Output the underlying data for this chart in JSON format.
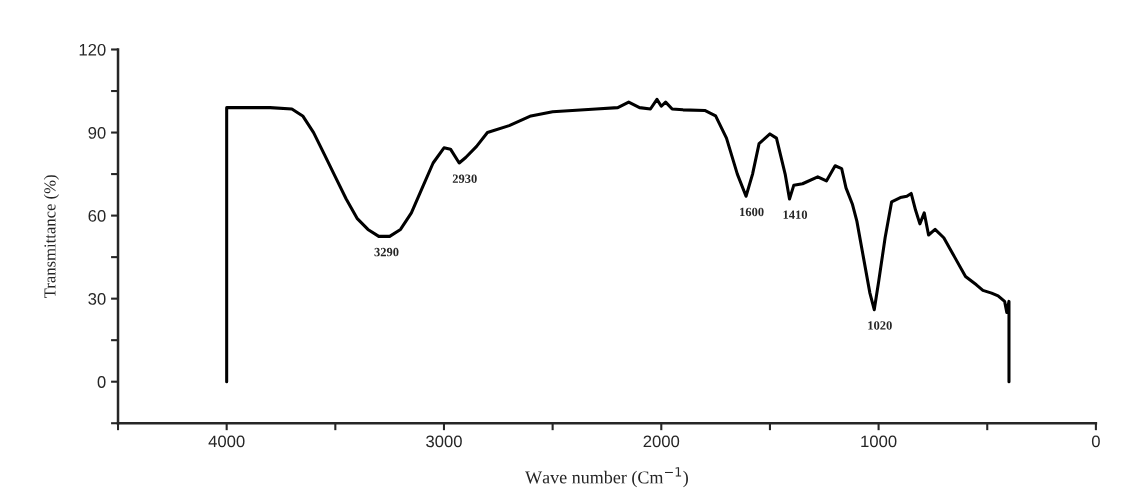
{
  "chart_data": {
    "type": "line",
    "xlabel": "Wave number (Cm$^{−1}$)",
    "ylabel": "Transmittance (%)",
    "xlim": [
      4500,
      0
    ],
    "ylim": [
      -15,
      120
    ],
    "xticks": [
      {
        "value": 4500,
        "label": null
      },
      4000,
      {
        "value": 3500,
        "label": null
      },
      3000,
      {
        "value": 2500,
        "label": null
      },
      2000,
      {
        "value": 1500,
        "label": null
      },
      1000,
      {
        "value": 500,
        "label": null
      },
      0
    ],
    "yticks": [
      {
        "value": -15,
        "label": null
      },
      0,
      {
        "value": 15,
        "label": null
      },
      30,
      {
        "value": 45,
        "label": null
      },
      60,
      {
        "value": 75,
        "label": null
      },
      90,
      {
        "value": 105,
        "label": null
      },
      120
    ],
    "grid": false,
    "legend": false,
    "marker": "none",
    "line_style": "solid",
    "series": [
      {
        "color": "#000000",
        "x": [
          4000,
          4000,
          3900,
          3800,
          3700,
          3650,
          3600,
          3550,
          3500,
          3450,
          3400,
          3350,
          3300,
          3250,
          3200,
          3150,
          3100,
          3050,
          3000,
          2970,
          2930,
          2900,
          2850,
          2800,
          2700,
          2600,
          2500,
          2300,
          2200,
          2150,
          2100,
          2050,
          2020,
          2000,
          1980,
          1950,
          1900,
          1800,
          1750,
          1700,
          1650,
          1610,
          1580,
          1550,
          1500,
          1470,
          1430,
          1410,
          1390,
          1350,
          1280,
          1240,
          1200,
          1170,
          1150,
          1120,
          1100,
          1070,
          1040,
          1020,
          1000,
          970,
          940,
          900,
          870,
          850,
          830,
          810,
          790,
          770,
          740,
          700,
          650,
          600,
          550,
          520,
          480,
          450,
          420,
          410,
          400,
          400
        ],
        "values": [
          0,
          99,
          99,
          99,
          98.5,
          96,
          90,
          82,
          74,
          66,
          59,
          55,
          52.5,
          52.5,
          55,
          61,
          70,
          79,
          84.5,
          84,
          79,
          81,
          85,
          90,
          92.5,
          96,
          97.5,
          98.5,
          99,
          101,
          99,
          98.5,
          102,
          99.5,
          101,
          98.5,
          98.2,
          98,
          96,
          88,
          75,
          67,
          75,
          86,
          89.5,
          88,
          75,
          66,
          71,
          71.5,
          74,
          72.5,
          78,
          77,
          70,
          64,
          58,
          45,
          32,
          26,
          36,
          52,
          65,
          66.5,
          67,
          68,
          62,
          57,
          61,
          53,
          55,
          52,
          45,
          38,
          35,
          33,
          32,
          31,
          29,
          25,
          29,
          0
        ]
      }
    ],
    "annotations": [
      {
        "text": "3290",
        "x": 3290,
        "y": 52.5
      },
      {
        "text": "2930",
        "x": 2930,
        "y": 79
      },
      {
        "text": "1600",
        "x": 1610,
        "y": 67
      },
      {
        "text": "1410",
        "x": 1410,
        "y": 66
      },
      {
        "text": "1020",
        "x": 1020,
        "y": 26
      }
    ]
  }
}
